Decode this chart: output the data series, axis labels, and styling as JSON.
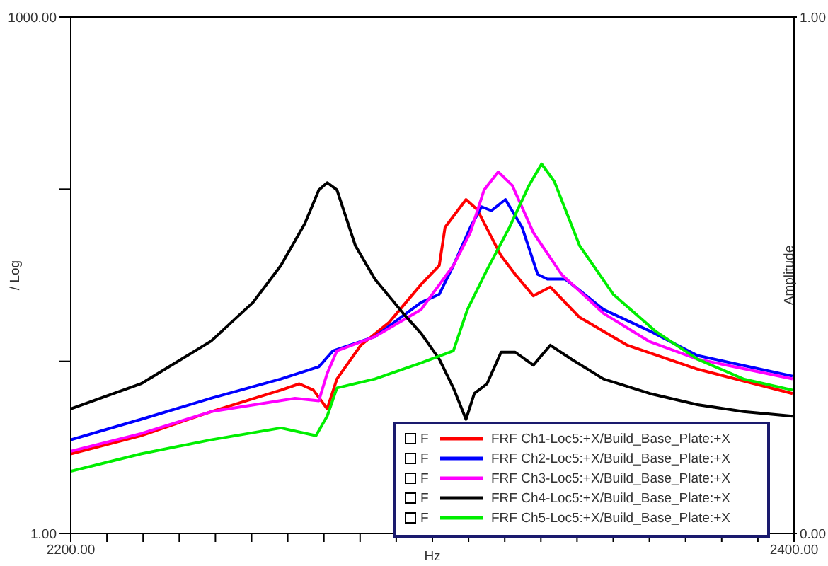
{
  "chart_data": {
    "type": "line",
    "xlabel": "Hz",
    "ylabel": "/ Log",
    "y2label": "Amplitude",
    "xlim": [
      2200,
      2400
    ],
    "xticks": [
      {
        "value": 2200,
        "label": "2200.00"
      },
      {
        "value": 2210,
        "label": null
      },
      {
        "value": 2220,
        "label": null
      },
      {
        "value": 2230,
        "label": null
      },
      {
        "value": 2240,
        "label": null
      },
      {
        "value": 2250,
        "label": null
      },
      {
        "value": 2260,
        "label": null
      },
      {
        "value": 2270,
        "label": null
      },
      {
        "value": 2280,
        "label": null
      },
      {
        "value": 2290,
        "label": null
      },
      {
        "value": 2300,
        "label": null
      },
      {
        "value": 2310,
        "label": null
      },
      {
        "value": 2320,
        "label": null
      },
      {
        "value": 2330,
        "label": null
      },
      {
        "value": 2340,
        "label": null
      },
      {
        "value": 2350,
        "label": null
      },
      {
        "value": 2360,
        "label": null
      },
      {
        "value": 2370,
        "label": null
      },
      {
        "value": 2380,
        "label": null
      },
      {
        "value": 2390,
        "label": null
      },
      {
        "value": 2400,
        "label": "2400.00"
      }
    ],
    "ylim": [
      1,
      1000
    ],
    "yticks": [
      {
        "value": 1,
        "label": "1.00"
      },
      {
        "value": 10,
        "label": null
      },
      {
        "value": 100,
        "label": null
      },
      {
        "value": 1000,
        "label": "1000.00"
      }
    ],
    "y2lim": [
      0,
      1
    ],
    "y2ticks": [
      {
        "value": 0,
        "label": "0.00"
      },
      {
        "value": 1,
        "label": "1.00"
      }
    ],
    "log": "y",
    "grid": false,
    "legend": "bottom right",
    "marker": "none",
    "line_style": "solid",
    "annotations": [
      "F",
      "F",
      "F",
      "F",
      "F"
    ],
    "series": [
      {
        "name": "FRF Ch1-Loc5:+X/Build_Base_Plate:+X",
        "color": "#ff0000",
        "x": [
          2200,
          2219.4,
          2238.8,
          2258.1,
          2263.2,
          2267.1,
          2270.9,
          2273.6,
          2280.2,
          2288,
          2296.9,
          2301.9,
          2303.5,
          2309.3,
          2312.4,
          2319,
          2322.9,
          2327.9,
          2332.6,
          2340.7,
          2353.9,
          2373.3,
          2399.6
        ],
        "values": [
          2.9,
          3.7,
          5.1,
          6.8,
          7.4,
          6.8,
          5.3,
          7.9,
          12.4,
          16.8,
          28,
          36,
          60,
          87,
          76,
          41,
          32,
          24,
          27,
          18,
          12.4,
          9,
          6.5
        ]
      },
      {
        "name": "FRF Ch2-Loc5:+X/Build_Base_Plate:+X",
        "color": "#0000ff",
        "x": [
          2200,
          2219.4,
          2238.8,
          2258.1,
          2268.6,
          2272.5,
          2284.1,
          2296.9,
          2301.9,
          2305.8,
          2310.5,
          2313.6,
          2316.3,
          2320.2,
          2324.8,
          2329.1,
          2331.8,
          2336.8,
          2347.3,
          2360.1,
          2373.3,
          2399.6
        ],
        "values": [
          3.5,
          4.6,
          6.1,
          7.9,
          9.3,
          11.5,
          13.9,
          22,
          24.5,
          36,
          60,
          79,
          75,
          87,
          60,
          32,
          30,
          30,
          20,
          15,
          10.8,
          8.2
        ]
      },
      {
        "name": "FRF Ch3-Loc5:+X/Build_Base_Plate:+X",
        "color": "#ff00ff",
        "x": [
          2200,
          2219.4,
          2238.8,
          2262,
          2268.6,
          2270.9,
          2273.6,
          2284.1,
          2296.9,
          2305.8,
          2310.5,
          2314.3,
          2318.2,
          2322.1,
          2327.9,
          2335.7,
          2347.3,
          2360.1,
          2373.3,
          2399.6
        ],
        "values": [
          3,
          3.8,
          5.1,
          6.1,
          5.9,
          8.5,
          11.5,
          13.9,
          20,
          36,
          56,
          99,
          126,
          105,
          56,
          32,
          19,
          13,
          10.3,
          7.9
        ]
      },
      {
        "name": "FRF Ch4-Loc5:+X/Build_Base_Plate:+X",
        "color": "#000000",
        "x": [
          2200,
          2219.4,
          2238.8,
          2250.4,
          2258.1,
          2264.7,
          2268.6,
          2270.9,
          2273.6,
          2278.7,
          2284.1,
          2291.9,
          2296.9,
          2301.9,
          2305.8,
          2309.3,
          2311.6,
          2315.1,
          2319,
          2322.9,
          2327.9,
          2332.6,
          2338.4,
          2347.3,
          2360.1,
          2373.3,
          2386,
          2399.6
        ],
        "values": [
          5.3,
          7.4,
          13.1,
          22,
          36,
          63,
          99,
          109,
          99,
          47,
          30,
          19,
          14.5,
          10.3,
          7,
          4.6,
          6.5,
          7.4,
          11.3,
          11.3,
          9.5,
          12.4,
          10.3,
          7.9,
          6.5,
          5.6,
          5.1,
          4.8
        ]
      },
      {
        "name": "FRF Ch5-Loc5:+X/Build_Base_Plate:+X",
        "color": "#00ee00",
        "x": [
          2200,
          2219.4,
          2238.8,
          2258.1,
          2267.8,
          2270.9,
          2273.6,
          2284.1,
          2296.9,
          2305.8,
          2309.7,
          2315.1,
          2321.3,
          2326.7,
          2330.2,
          2333.7,
          2340.7,
          2350,
          2361.6,
          2373.3,
          2386,
          2399.6
        ],
        "values": [
          2.3,
          2.9,
          3.5,
          4.1,
          3.7,
          4.8,
          7,
          7.9,
          9.8,
          11.5,
          20,
          34,
          60,
          105,
          140,
          111,
          47,
          24.5,
          15,
          10.3,
          7.9,
          6.8
        ]
      }
    ]
  }
}
